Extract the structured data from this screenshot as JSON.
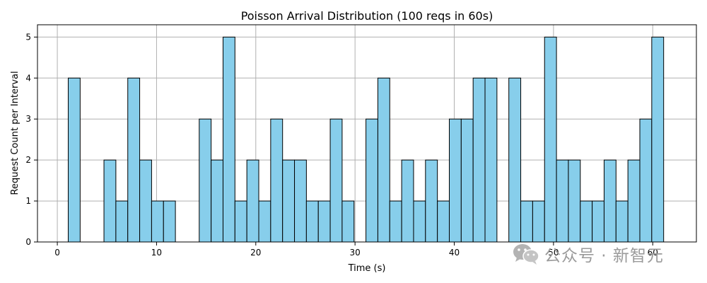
{
  "chart_data": {
    "type": "bar",
    "title": "Poisson Arrival Distribution (100 reqs in 60s)",
    "xlabel": "Time (s)",
    "ylabel": "Request Count per Interval",
    "xlim": [
      -2.0,
      64.4
    ],
    "ylim": [
      0,
      5.3
    ],
    "xticks": [
      0,
      10,
      20,
      30,
      40,
      50,
      60
    ],
    "yticks": [
      0,
      1,
      2,
      3,
      4,
      5
    ],
    "bin_width": 1.2,
    "bin_start": 1.1,
    "values": [
      4,
      0,
      0,
      2,
      1,
      4,
      2,
      1,
      1,
      0,
      0,
      3,
      2,
      5,
      1,
      2,
      1,
      3,
      2,
      2,
      1,
      1,
      3,
      1,
      0,
      3,
      4,
      1,
      2,
      1,
      2,
      1,
      3,
      3,
      4,
      4,
      0,
      4,
      1,
      1,
      5,
      2,
      2,
      1,
      1,
      2,
      1,
      2,
      3,
      5
    ],
    "bar_color": "#87ceeb",
    "edge_color": "#000000",
    "grid": true
  },
  "watermark": {
    "text": "公众号 · 新智元",
    "icon": "wechat-icon"
  }
}
